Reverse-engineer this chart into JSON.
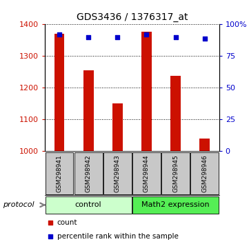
{
  "title": "GDS3436 / 1376317_at",
  "samples": [
    "GSM298941",
    "GSM298942",
    "GSM298943",
    "GSM298944",
    "GSM298945",
    "GSM298946"
  ],
  "counts": [
    1370,
    1256,
    1150,
    1376,
    1238,
    1040
  ],
  "percentiles": [
    92,
    90,
    90,
    92,
    90,
    89
  ],
  "ylim_left": [
    1000,
    1400
  ],
  "ylim_right": [
    0,
    100
  ],
  "yticks_left": [
    1000,
    1100,
    1200,
    1300,
    1400
  ],
  "yticks_right": [
    0,
    25,
    50,
    75,
    100
  ],
  "ytick_labels_right": [
    "0",
    "25",
    "50",
    "75",
    "100%"
  ],
  "bar_color": "#cc1100",
  "scatter_color": "#0000cc",
  "groups": [
    {
      "label": "control",
      "indices": [
        0,
        1,
        2
      ],
      "color": "#ccffcc"
    },
    {
      "label": "Math2 expression",
      "indices": [
        3,
        4,
        5
      ],
      "color": "#55ee55"
    }
  ],
  "protocol_label": "protocol",
  "legend_count_label": "count",
  "legend_percentile_label": "percentile rank within the sample",
  "bar_width": 0.35,
  "left_tick_color": "#cc1100",
  "right_tick_color": "#0000cc"
}
